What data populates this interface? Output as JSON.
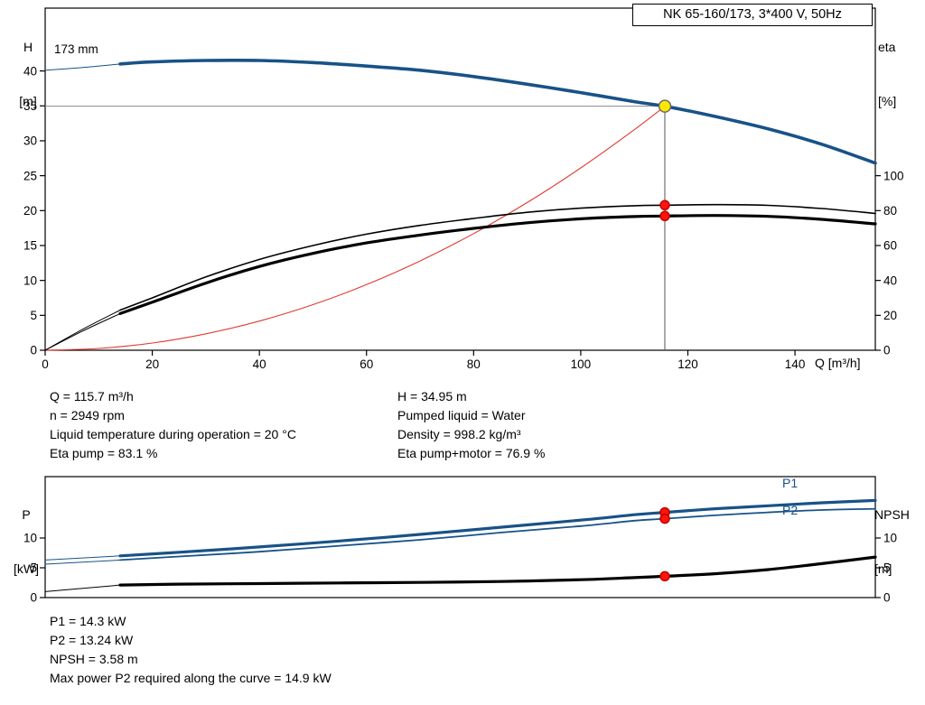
{
  "header": {
    "title_box": "NK 65-160/173, 3*400 V, 50Hz"
  },
  "accent_colors": {
    "curve_blue": "#185287",
    "curve_black": "#000000",
    "system_red": "#e03a30",
    "duty_yellow": "#ffe800",
    "duty_red": "#ff140a"
  },
  "top_chart": {
    "impeller_label": "173 mm",
    "ylabel_left_1": "H",
    "ylabel_left_2": "[m]",
    "ylabel_right_1": "eta",
    "ylabel_right_2": "[%]",
    "xlabel": "Q [m³/h]"
  },
  "bottom_chart": {
    "ylabel_left_1": "P",
    "ylabel_left_2": "[kW]",
    "ylabel_right_1": "NPSH",
    "ylabel_right_2": "[m]",
    "p1_label": "P1",
    "p2_label": "P2"
  },
  "info_top_left": [
    "Q = 115.7 m³/h",
    "n = 2949 rpm",
    "Liquid temperature during operation = 20 °C",
    "Eta pump = 83.1 %"
  ],
  "info_top_right": [
    "H = 34.95 m",
    "Pumped liquid = Water",
    "Density = 998.2 kg/m³",
    "Eta pump+motor = 76.9 %"
  ],
  "info_bottom": [
    "P1 = 14.3 kW",
    "P2 = 13.24 kW",
    "NPSH = 3.58 m",
    "Max power P2 required along the curve = 14.9 kW"
  ],
  "chart_data": [
    {
      "id": "qh-chart",
      "type": "line",
      "title": "NK 65-160/173, 3*400 V, 50Hz",
      "xlabel": "Q [m³/h]",
      "ylabel_left": "H [m]",
      "ylabel_right": "eta [%]",
      "xlim": [
        0,
        155
      ],
      "ylim_left": [
        0,
        49
      ],
      "ylim_right": [
        0,
        196
      ],
      "x_ticks": [
        0,
        20,
        40,
        60,
        80,
        100,
        120,
        140
      ],
      "y_left_ticks": [
        0,
        5,
        10,
        15,
        20,
        25,
        30,
        35,
        40
      ],
      "y_right_ticks": [
        0,
        20,
        40,
        60,
        80,
        100
      ],
      "grid": false,
      "duty_point": {
        "q": 115.7,
        "h": 34.95,
        "eta_pump": 83.1,
        "eta_pump_motor": 76.9
      },
      "series": [
        {
          "name": "system-curve",
          "axis": "left",
          "color": "#e03a30",
          "width": 1.1,
          "points": [
            [
              0,
              0
            ],
            [
              10,
              0.26
            ],
            [
              20,
              1.04
            ],
            [
              30,
              2.35
            ],
            [
              40,
              4.18
            ],
            [
              50,
              6.53
            ],
            [
              60,
              9.4
            ],
            [
              70,
              12.79
            ],
            [
              80,
              16.71
            ],
            [
              90,
              21.15
            ],
            [
              100,
              26.11
            ],
            [
              110,
              31.59
            ],
            [
              115.7,
              34.95
            ]
          ]
        },
        {
          "name": "eta-pump-curve-low-flow",
          "axis": "right",
          "color": "#000000",
          "width": 1,
          "points": [
            [
              0,
              0
            ],
            [
              7,
              12
            ],
            [
              14,
              23
            ]
          ]
        },
        {
          "name": "eta-pump-motor-curve-low-flow",
          "axis": "right",
          "color": "#000000",
          "width": 1,
          "points": [
            [
              0,
              0
            ],
            [
              7,
              11
            ],
            [
              14,
              21
            ]
          ]
        },
        {
          "name": "eta-pump-curve",
          "axis": "right",
          "color": "#000000",
          "width": 1.6,
          "points": [
            [
              14,
              23
            ],
            [
              20,
              30
            ],
            [
              30,
              42
            ],
            [
              40,
              52
            ],
            [
              50,
              60
            ],
            [
              60,
              66.5
            ],
            [
              70,
              71.5
            ],
            [
              80,
              75.5
            ],
            [
              90,
              79
            ],
            [
              100,
              81.4
            ],
            [
              110,
              82.8
            ],
            [
              115.7,
              83.1
            ],
            [
              125,
              83.4
            ],
            [
              135,
              83
            ],
            [
              145,
              81.2
            ],
            [
              155,
              78.4
            ]
          ]
        },
        {
          "name": "eta-pump-motor-curve",
          "axis": "right",
          "color": "#000000",
          "width": 3.2,
          "points": [
            [
              14,
              21
            ],
            [
              20,
              27.5
            ],
            [
              30,
              38.5
            ],
            [
              40,
              48
            ],
            [
              50,
              55.5
            ],
            [
              60,
              61.5
            ],
            [
              70,
              66
            ],
            [
              80,
              69.8
            ],
            [
              90,
              73
            ],
            [
              100,
              75.3
            ],
            [
              110,
              76.6
            ],
            [
              115.7,
              76.9
            ],
            [
              125,
              77.2
            ],
            [
              135,
              76.7
            ],
            [
              145,
              75
            ],
            [
              155,
              72.4
            ]
          ]
        },
        {
          "name": "pump-curve-low-flow",
          "axis": "left",
          "color": "#185287",
          "width": 1,
          "points": [
            [
              0,
              40.1
            ],
            [
              7,
              40.5
            ],
            [
              14,
              41.0
            ]
          ]
        },
        {
          "name": "pump-curve-173mm",
          "axis": "left",
          "color": "#185287",
          "width": 3.6,
          "points": [
            [
              14,
              41.0
            ],
            [
              20,
              41.3
            ],
            [
              30,
              41.5
            ],
            [
              40,
              41.5
            ],
            [
              50,
              41.2
            ],
            [
              60,
              40.7
            ],
            [
              70,
              40.1
            ],
            [
              80,
              39.2
            ],
            [
              90,
              38.1
            ],
            [
              100,
              36.9
            ],
            [
              110,
              35.6
            ],
            [
              115.7,
              34.95
            ],
            [
              125,
              33.5
            ],
            [
              135,
              31.7
            ],
            [
              145,
              29.5
            ],
            [
              155,
              26.8
            ]
          ]
        }
      ],
      "markers": [
        {
          "name": "duty-eta-pump-marker",
          "q": 115.7,
          "value": 83.1,
          "axis": "right",
          "fill": "#ff140a",
          "stroke": "#c00000",
          "r": 5
        },
        {
          "name": "duty-eta-pump-motor-marker",
          "q": 115.7,
          "value": 76.9,
          "axis": "right",
          "fill": "#ff140a",
          "stroke": "#c00000",
          "r": 5
        },
        {
          "name": "duty-point-marker",
          "q": 115.7,
          "value": 34.95,
          "axis": "left",
          "fill": "#ffe800",
          "stroke": "#6a6a6a",
          "r": 6.5
        }
      ]
    },
    {
      "id": "power-npsh-chart",
      "type": "line",
      "title": "",
      "xlabel": "Q [m³/h]",
      "ylabel_left": "P [kW]",
      "ylabel_right": "NPSH [m]",
      "xlim": [
        0,
        155
      ],
      "ylim_left": [
        0,
        20.3
      ],
      "ylim_right": [
        0,
        20.3
      ],
      "x_ticks": [
        0,
        20,
        40,
        60,
        80,
        100,
        120,
        140
      ],
      "y_left_ticks": [
        0,
        5,
        10
      ],
      "y_right_ticks": [
        0,
        5,
        10
      ],
      "grid": false,
      "duty_point": {
        "q": 115.7,
        "p1": 14.3,
        "p2": 13.24,
        "npsh": 3.58
      },
      "series": [
        {
          "name": "p1-curve-low-flow",
          "axis": "left",
          "color": "#185287",
          "width": 1,
          "points": [
            [
              0,
              6.3
            ],
            [
              14,
              7.0
            ]
          ]
        },
        {
          "name": "p2-curve-low-flow",
          "axis": "left",
          "color": "#185287",
          "width": 1,
          "points": [
            [
              0,
              5.6
            ],
            [
              14,
              6.3
            ]
          ]
        },
        {
          "name": "npsh-curve-low-flow",
          "axis": "right",
          "color": "#000000",
          "width": 1,
          "points": [
            [
              0,
              1.0
            ],
            [
              14,
              2.1
            ]
          ]
        },
        {
          "name": "p2-curve",
          "axis": "left",
          "color": "#185287",
          "width": 1.8,
          "points": [
            [
              14,
              6.3
            ],
            [
              25,
              6.9
            ],
            [
              40,
              7.7
            ],
            [
              55,
              8.7
            ],
            [
              70,
              9.7
            ],
            [
              85,
              10.9
            ],
            [
              100,
              12.0
            ],
            [
              110,
              12.9
            ],
            [
              115.7,
              13.24
            ],
            [
              125,
              13.8
            ],
            [
              135,
              14.3
            ],
            [
              145,
              14.7
            ],
            [
              155,
              14.9
            ]
          ]
        },
        {
          "name": "p1-curve",
          "axis": "left",
          "color": "#185287",
          "width": 3.2,
          "points": [
            [
              14,
              7.0
            ],
            [
              25,
              7.6
            ],
            [
              40,
              8.5
            ],
            [
              55,
              9.5
            ],
            [
              70,
              10.6
            ],
            [
              85,
              11.8
            ],
            [
              100,
              13.0
            ],
            [
              110,
              13.9
            ],
            [
              115.7,
              14.3
            ],
            [
              125,
              14.9
            ],
            [
              135,
              15.4
            ],
            [
              145,
              15.9
            ],
            [
              155,
              16.3
            ]
          ]
        },
        {
          "name": "npsh-curve",
          "axis": "right",
          "color": "#000000",
          "width": 3.2,
          "points": [
            [
              14,
              2.1
            ],
            [
              25,
              2.25
            ],
            [
              40,
              2.35
            ],
            [
              55,
              2.45
            ],
            [
              70,
              2.55
            ],
            [
              85,
              2.7
            ],
            [
              100,
              3.0
            ],
            [
              110,
              3.35
            ],
            [
              115.7,
              3.58
            ],
            [
              125,
              4.0
            ],
            [
              135,
              4.7
            ],
            [
              145,
              5.7
            ],
            [
              155,
              6.8
            ]
          ]
        }
      ],
      "markers": [
        {
          "name": "duty-p1-marker",
          "q": 115.7,
          "value": 14.3,
          "axis": "left",
          "fill": "#ff140a",
          "stroke": "#c00000",
          "r": 5
        },
        {
          "name": "duty-p2-marker",
          "q": 115.7,
          "value": 13.24,
          "axis": "left",
          "fill": "#ff140a",
          "stroke": "#c00000",
          "r": 5
        },
        {
          "name": "duty-npsh-marker",
          "q": 115.7,
          "value": 3.58,
          "axis": "right",
          "fill": "#ff140a",
          "stroke": "#c00000",
          "r": 5
        }
      ]
    }
  ]
}
